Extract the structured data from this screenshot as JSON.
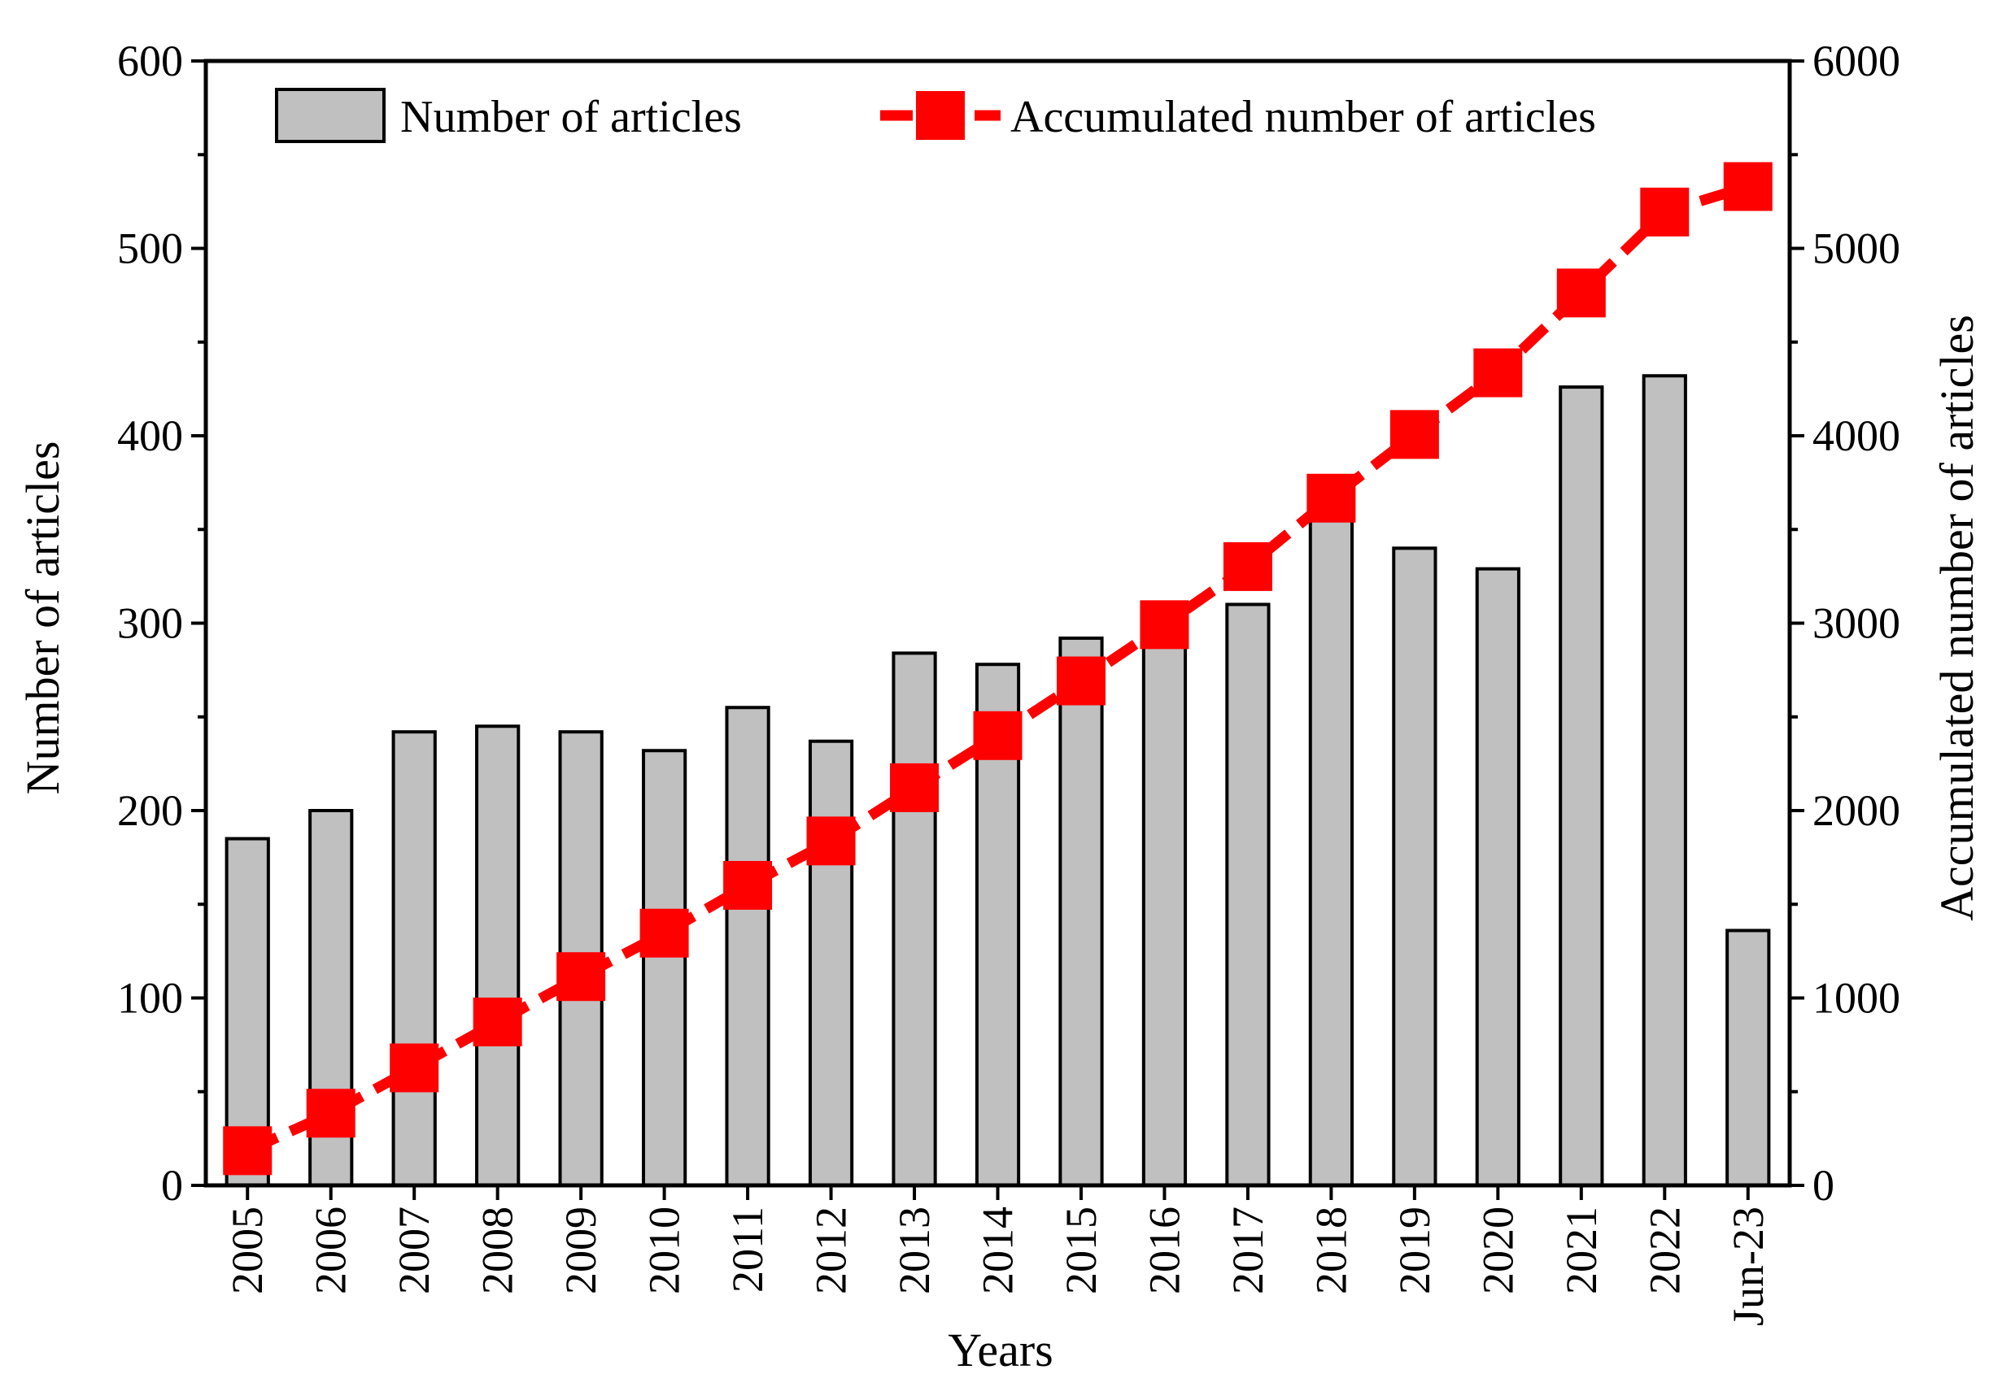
{
  "chart_data": {
    "type": "bar+line",
    "xlabel": "Years",
    "ylabel_left": "Number of articles",
    "ylabel_right": "Accumulated number of articles",
    "ylim_left": [
      0,
      600
    ],
    "ylim_right": [
      0,
      6000
    ],
    "yticks_left": [
      0,
      100,
      200,
      300,
      400,
      500,
      600
    ],
    "yticks_right": [
      0,
      1000,
      2000,
      3000,
      4000,
      5000,
      6000
    ],
    "categories": [
      "2005",
      "2006",
      "2007",
      "2008",
      "2009",
      "2010",
      "2011",
      "2012",
      "2013",
      "2014",
      "2015",
      "2016",
      "2017",
      "2018",
      "2019",
      "2020",
      "2021",
      "2022",
      "Jun-23"
    ],
    "series": [
      {
        "name": "Number of articles",
        "type": "bar",
        "axis": "left",
        "color": "#c0c0c0",
        "values": [
          185,
          200,
          242,
          245,
          242,
          232,
          255,
          237,
          284,
          278,
          292,
          300,
          310,
          365,
          340,
          329,
          426,
          432,
          136
        ]
      },
      {
        "name": "Accumulated number of articles",
        "type": "line",
        "axis": "right",
        "color": "#ff0000",
        "values": [
          185,
          385,
          627,
          872,
          1114,
          1346,
          1601,
          1838,
          2122,
          2400,
          2692,
          2992,
          3302,
          3667,
          4007,
          4336,
          4762,
          5194,
          5330
        ]
      }
    ],
    "legend": {
      "position": "top",
      "entries": [
        "Number of articles",
        "Accumulated number of articles"
      ]
    }
  }
}
